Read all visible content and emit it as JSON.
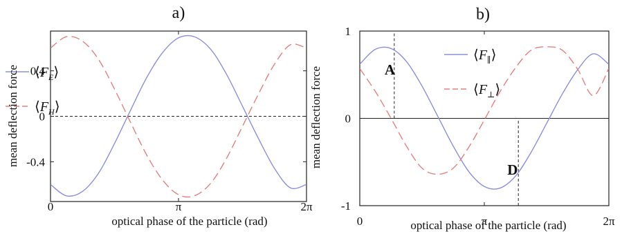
{
  "chart_data": [
    {
      "type": "line",
      "panel_label": "a)",
      "title": "",
      "xlabel": "optical phase of the particle  (rad)",
      "ylabel": "mean deflection force",
      "xlim": [
        0,
        6.283
      ],
      "ylim": [
        -0.75,
        0.75
      ],
      "xticks": [
        {
          "value": 0,
          "label": "0"
        },
        {
          "value": 3.1416,
          "label": "π"
        },
        {
          "value": 6.2832,
          "label": "2π"
        }
      ],
      "yticks": [
        {
          "value": 0.4,
          "label": "0.4"
        },
        {
          "value": 0,
          "label": "0"
        },
        {
          "value": -0.4,
          "label": "-0.4"
        }
      ],
      "grid": false,
      "legend_placement": "upper-left",
      "series": [
        {
          "name": "F_E",
          "legend_label": "⟨F_E⟩",
          "legend_base": "F",
          "legend_sub": "E",
          "color": "#8a8fe0",
          "style": "solid",
          "x": [
            0,
            0.39,
            0.79,
            1.18,
            1.57,
            1.96,
            2.36,
            2.75,
            3.14,
            3.53,
            3.93,
            4.32,
            4.71,
            5.11,
            5.5,
            5.89,
            6.28
          ],
          "y": [
            -0.6,
            -0.7,
            -0.66,
            -0.5,
            -0.24,
            0.05,
            0.34,
            0.56,
            0.69,
            0.7,
            0.59,
            0.37,
            0.09,
            -0.2,
            -0.46,
            -0.63,
            -0.6
          ]
        },
        {
          "name": "F_H",
          "legend_label": "⟨F_H⟩",
          "legend_base": "F",
          "legend_sub": "H",
          "color": "#e87f7f",
          "style": "dashed",
          "x": [
            0,
            0.39,
            0.79,
            1.18,
            1.57,
            1.96,
            2.36,
            2.75,
            3.14,
            3.53,
            3.93,
            4.32,
            4.71,
            5.11,
            5.5,
            5.89,
            6.28
          ],
          "y": [
            0.6,
            0.7,
            0.66,
            0.5,
            0.24,
            -0.05,
            -0.34,
            -0.56,
            -0.69,
            -0.7,
            -0.59,
            -0.37,
            -0.09,
            0.2,
            0.46,
            0.63,
            0.6
          ]
        }
      ],
      "reference_lines": [
        {
          "type": "horizontal",
          "y": 0,
          "style": "dashed",
          "color": "#222222"
        }
      ],
      "annotations": []
    },
    {
      "type": "line",
      "panel_label": "b)",
      "title": "",
      "xlabel": "optical phase of the particle  (rad)",
      "ylabel": "mean deflection force",
      "xlim": [
        0,
        6.283
      ],
      "ylim": [
        -1,
        1
      ],
      "xticks": [
        {
          "value": 0,
          "label": "0"
        },
        {
          "value": 3.1416,
          "label": "π"
        },
        {
          "value": 6.2832,
          "label": "2π"
        }
      ],
      "yticks": [
        {
          "value": 1,
          "label": "1"
        },
        {
          "value": 0,
          "label": "0"
        },
        {
          "value": -1,
          "label": "-1"
        }
      ],
      "grid": false,
      "legend_placement": "top-center",
      "series": [
        {
          "name": "F_parallel",
          "legend_label": "⟨F∥⟩",
          "legend_base": "F",
          "legend_sub": "∥",
          "color": "#8a8fe0",
          "style": "solid",
          "x": [
            0,
            0.39,
            0.79,
            1.18,
            1.57,
            1.96,
            2.36,
            2.75,
            3.14,
            3.53,
            3.93,
            4.32,
            4.71,
            5.11,
            5.5,
            5.89,
            6.28
          ],
          "y": [
            0.62,
            0.79,
            0.8,
            0.65,
            0.37,
            0.03,
            -0.32,
            -0.61,
            -0.78,
            -0.8,
            -0.66,
            -0.39,
            -0.06,
            0.28,
            0.56,
            0.74,
            0.62
          ]
        },
        {
          "name": "F_perp",
          "legend_label": "⟨F⊥⟩",
          "legend_base": "F",
          "legend_sub": "⊥",
          "color": "#e87f7f",
          "style": "dashed",
          "x": [
            0,
            0.39,
            0.79,
            1.18,
            1.57,
            1.96,
            2.36,
            2.75,
            3.14,
            3.53,
            3.93,
            4.32,
            4.71,
            5.11,
            5.5,
            5.89,
            6.28
          ],
          "y": [
            0.57,
            0.31,
            0.0,
            -0.32,
            -0.57,
            -0.64,
            -0.57,
            -0.33,
            -0.02,
            0.3,
            0.58,
            0.78,
            0.82,
            0.78,
            0.56,
            0.26,
            0.57
          ]
        }
      ],
      "reference_lines": [
        {
          "type": "horizontal",
          "y": 0,
          "style": "solid",
          "color": "#222222"
        },
        {
          "type": "vertical",
          "x": 0.87,
          "y_from": 0,
          "y_to": 1,
          "style": "dashed",
          "color": "#222222"
        },
        {
          "type": "vertical",
          "x": 4.0,
          "y_from": -1,
          "y_to": 0,
          "style": "dashed",
          "color": "#222222"
        }
      ],
      "annotations": [
        {
          "label": "A",
          "x": 0.87,
          "y": 0.55
        },
        {
          "label": "D",
          "x": 4.0,
          "y": -0.55
        }
      ]
    }
  ]
}
